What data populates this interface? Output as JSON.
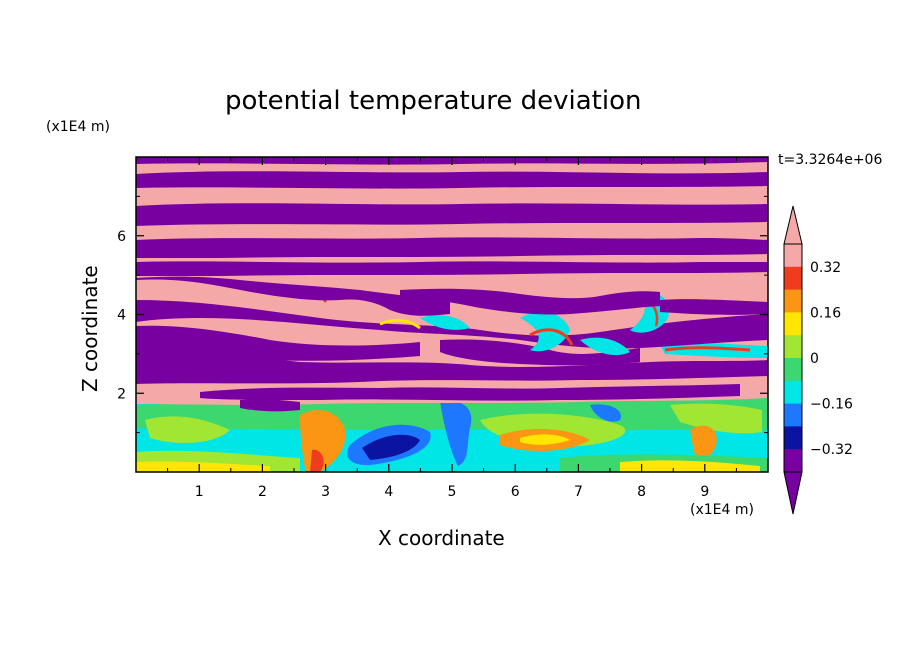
{
  "chart_data": {
    "type": "heatmap",
    "title": "potential temperature deviation",
    "xlabel": "X coordinate",
    "ylabel": "Z coordinate",
    "x_unit": "(x1E4 m)",
    "y_unit": "(x1E4 m)",
    "time_label": "t=3.3264e+06",
    "xlim": [
      0,
      10
    ],
    "ylim": [
      0,
      8
    ],
    "xticks": [
      1,
      2,
      3,
      4,
      5,
      6,
      7,
      8,
      9
    ],
    "yticks": [
      2,
      4,
      6
    ],
    "colorbar": {
      "levels": [
        -0.4,
        -0.32,
        -0.24,
        -0.16,
        -0.08,
        0,
        0.08,
        0.16,
        0.24,
        0.32,
        0.4
      ],
      "labeled_ticks": [
        0.32,
        0.16,
        0,
        -0.16,
        -0.32
      ],
      "tick_labels": [
        "0.32",
        "0.16",
        "0",
        "−0.16",
        "−0.32"
      ],
      "colors_top_to_bottom": [
        "#f5a8a8",
        "#f03c1e",
        "#fa9614",
        "#ffe600",
        "#a0e632",
        "#3cd76e",
        "#00e6e6",
        "#1e78ff",
        "#0a14a0",
        "#7800a0"
      ],
      "over_color": "#f5a8a8",
      "under_color": "#7800a0",
      "extend": "both"
    }
  }
}
